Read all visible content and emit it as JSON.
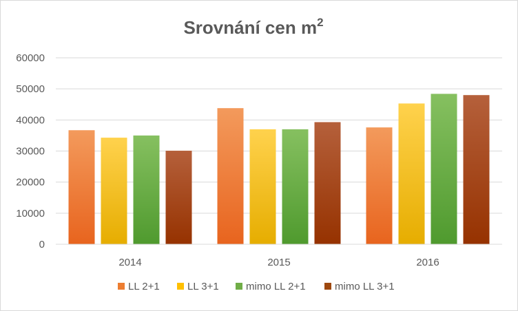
{
  "chart_data": {
    "type": "bar",
    "title": "Srovnání cen m",
    "title_superscript": "2",
    "categories": [
      "2014",
      "2015",
      "2016"
    ],
    "series": [
      {
        "name": "LL 2+1",
        "values": [
          36700,
          43800,
          37600
        ],
        "color_top": "#f39a5c",
        "color_bottom": "#e8641e",
        "legend_color": "#ed7d31"
      },
      {
        "name": "LL 3+1",
        "values": [
          34300,
          37000,
          45300
        ],
        "color_top": "#ffd24d",
        "color_bottom": "#e6ad00",
        "legend_color": "#ffc000"
      },
      {
        "name": "mimo LL 2+1",
        "values": [
          35000,
          37000,
          48400
        ],
        "color_top": "#86c060",
        "color_bottom": "#4f9a2e",
        "legend_color": "#70ad47"
      },
      {
        "name": "mimo LL 3+1",
        "values": [
          30100,
          39300,
          48000
        ],
        "color_top": "#b5603b",
        "color_bottom": "#963200",
        "legend_color": "#9e480e"
      }
    ],
    "ylim": [
      0,
      60000
    ],
    "yticks": [
      "0",
      "10000",
      "20000",
      "30000",
      "40000",
      "50000",
      "60000"
    ],
    "grid": true,
    "legend_position": "bottom",
    "xlabel": "",
    "ylabel": ""
  }
}
